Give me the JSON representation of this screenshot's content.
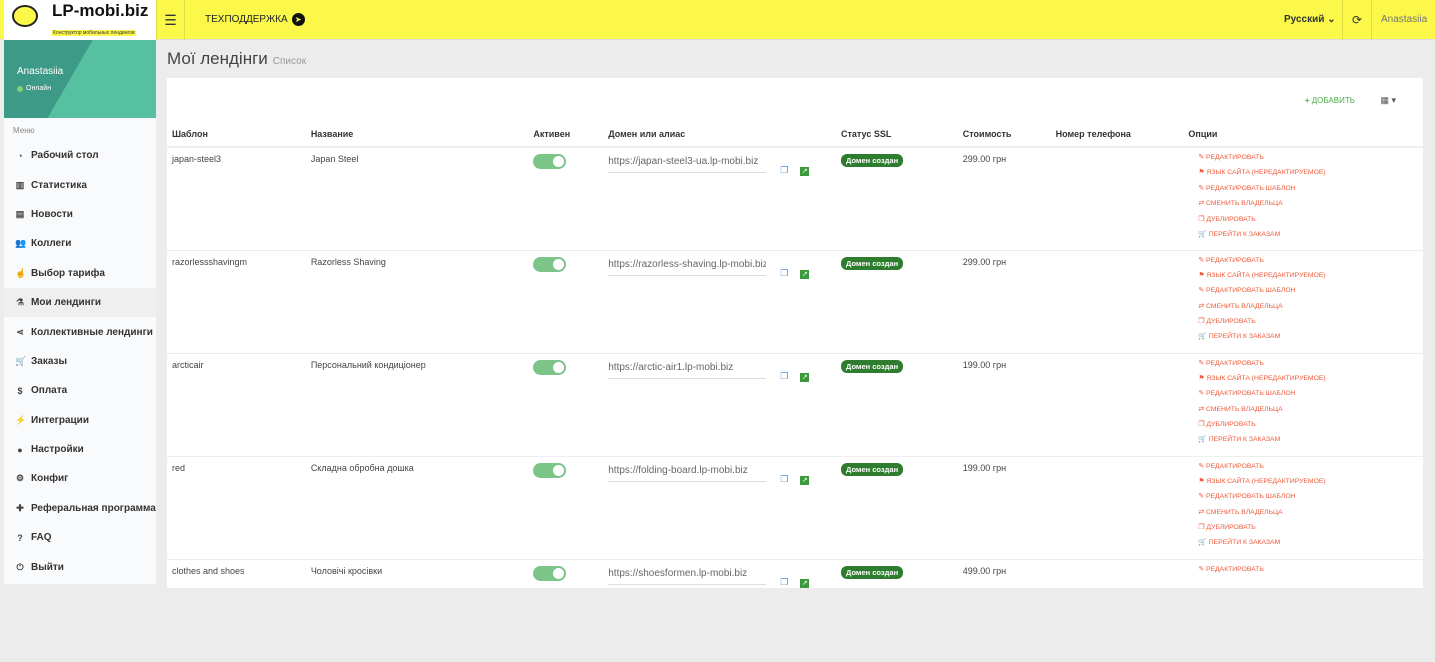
{
  "header": {
    "logo": "LP-mobi.biz",
    "logo_sub": "Конструктор мобильных лендингов",
    "support": "ТЕХПОДДЕРЖКА",
    "language": "Русский",
    "user": "Anastasiia"
  },
  "sidebar": {
    "user": "Anastasiia",
    "status": "Онлайн",
    "menu_title": "Меню",
    "items": [
      {
        "label": "Рабочий стол",
        "icon": "dashboard-icon"
      },
      {
        "label": "Статистика",
        "icon": "chart-icon"
      },
      {
        "label": "Новости",
        "icon": "news-icon"
      },
      {
        "label": "Коллеги",
        "icon": "users-icon"
      },
      {
        "label": "Выбор тарифа",
        "icon": "hand-icon"
      },
      {
        "label": "Мои лендинги",
        "icon": "landing-icon",
        "active": true
      },
      {
        "label": "Коллективные лендинги",
        "icon": "share-icon"
      },
      {
        "label": "Заказы",
        "icon": "cart-icon"
      },
      {
        "label": "Оплата",
        "icon": "dollar-icon"
      },
      {
        "label": "Интеграции",
        "icon": "plug-icon"
      },
      {
        "label": "Настройки",
        "icon": "user-icon"
      },
      {
        "label": "Конфиг",
        "icon": "cogs-icon"
      },
      {
        "label": "Реферальная программа",
        "icon": "user-plus-icon"
      },
      {
        "label": "FAQ",
        "icon": "question-icon"
      },
      {
        "label": "Выйти",
        "icon": "power-icon"
      }
    ]
  },
  "page": {
    "title": "Мої лендінги",
    "subtitle": "Список",
    "add": "ДОБАВИТЬ"
  },
  "table": {
    "columns": [
      "Шаблон",
      "Название",
      "Активен",
      "Домен или алиас",
      "Статус SSL",
      "Стоимость",
      "Номер телефона",
      "Опции"
    ],
    "options": [
      "РЕДАКТИРОВАТЬ",
      "ЯЗЫК САЙТА (НЕРЕДАКТИРУЕМОЕ)",
      "РЕДАКТИРОВАТЬ ШАБЛОН",
      "СМЕНИТЬ ВЛАДЕЛЬЦА",
      "ДУБЛИРОВАТЬ",
      "ПЕРЕЙТИ К ЗАКАЗАМ"
    ],
    "rows": [
      {
        "template": "japan-steel3",
        "name": "Japan Steel",
        "active": true,
        "domain": "https://japan-steel3-ua.lp-mobi.biz",
        "ssl": "Домен создан",
        "price": "299.00 грн",
        "phone": ""
      },
      {
        "template": "razorlessshavingm",
        "name": "Razorless Shaving",
        "active": true,
        "domain": "https://razorless-shaving.lp-mobi.biz",
        "ssl": "Домен создан",
        "price": "299.00 грн",
        "phone": ""
      },
      {
        "template": "arcticair",
        "name": "Персональний кондиціонер",
        "active": true,
        "domain": "https://arctic-air1.lp-mobi.biz",
        "ssl": "Домен создан",
        "price": "199.00 грн",
        "phone": ""
      },
      {
        "template": "red",
        "name": "Складна обробна дошка",
        "active": true,
        "domain": "https://folding-board.lp-mobi.biz",
        "ssl": "Домен создан",
        "price": "199.00 грн",
        "phone": ""
      },
      {
        "template": "clothes and shoes",
        "name": "Чоловічі кросівки",
        "active": true,
        "domain": "https://shoesformen.lp-mobi.biz",
        "ssl": "Домен создан",
        "price": "499.00 грн",
        "phone": ""
      }
    ]
  }
}
